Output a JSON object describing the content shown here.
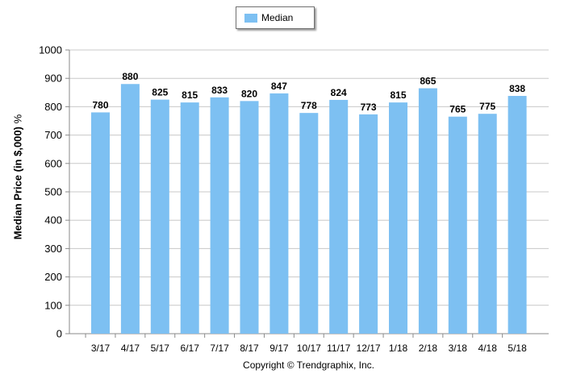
{
  "chart_data": {
    "type": "bar",
    "legend": {
      "label": "Median",
      "placement": "top-center"
    },
    "ylabel": "Median Price (in $,000)",
    "ylabel_suffix": "%",
    "xlabel": "",
    "ylim": [
      0,
      1000
    ],
    "yticks": [
      0,
      100,
      200,
      300,
      400,
      500,
      600,
      700,
      800,
      900,
      1000
    ],
    "categories": [
      "3/17",
      "4/17",
      "5/17",
      "6/17",
      "7/17",
      "8/17",
      "9/17",
      "10/17",
      "11/17",
      "12/17",
      "1/18",
      "2/18",
      "3/18",
      "4/18",
      "5/18"
    ],
    "series": [
      {
        "name": "Median",
        "values": [
          780,
          880,
          825,
          815,
          833,
          820,
          847,
          778,
          824,
          773,
          815,
          865,
          765,
          775,
          838
        ]
      }
    ],
    "data_labels": true,
    "grid": true,
    "colors": {
      "bar": "#7dc0f2",
      "grid": "#c8c8c8",
      "axis": "#8a8a8a"
    }
  },
  "footer": {
    "copyright": "Copyright © Trendgraphix, Inc."
  }
}
